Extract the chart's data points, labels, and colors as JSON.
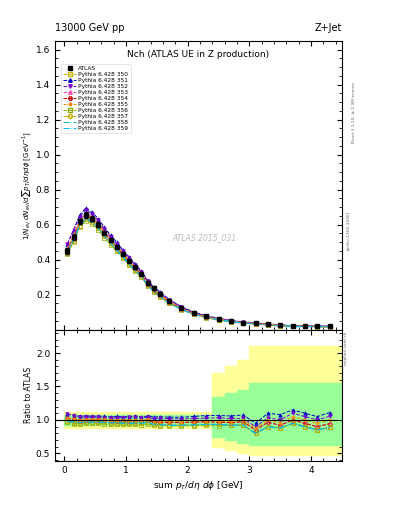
{
  "title_top": "13000 GeV pp",
  "title_right": "Z+Jet",
  "plot_title": "Nch (ATLAS UE in Z production)",
  "ylabel_main": "1/N_{ev} dN_{ev}/dsum p_{T}/d#eta d#phi  [GeV^{-1}]",
  "ylabel_ratio": "Ratio to ATLAS",
  "watermark": "ATLAS 2015_031",
  "rivet_label": "Rivet 3.1.10, ≥ 2.3M events",
  "arxiv_label": "[arXiv:1306.3436]",
  "mcplots_label": "mcplots.cern.ch",
  "xlim": [
    -0.15,
    4.5
  ],
  "ylim_main": [
    0.0,
    1.65
  ],
  "ylim_ratio": [
    0.39,
    2.35
  ],
  "x_atlas": [
    0.05,
    0.15,
    0.25,
    0.35,
    0.45,
    0.55,
    0.65,
    0.75,
    0.85,
    0.95,
    1.05,
    1.15,
    1.25,
    1.35,
    1.45,
    1.55,
    1.7,
    1.9,
    2.1,
    2.3,
    2.5,
    2.7,
    2.9,
    3.1,
    3.3,
    3.5,
    3.7,
    3.9,
    4.1,
    4.3
  ],
  "y_atlas": [
    0.45,
    0.53,
    0.62,
    0.655,
    0.635,
    0.6,
    0.555,
    0.515,
    0.475,
    0.435,
    0.395,
    0.355,
    0.32,
    0.265,
    0.235,
    0.205,
    0.165,
    0.125,
    0.095,
    0.075,
    0.06,
    0.05,
    0.04,
    0.04,
    0.03,
    0.025,
    0.02,
    0.02,
    0.02,
    0.018
  ],
  "yerr_atlas": [
    0.015,
    0.015,
    0.015,
    0.015,
    0.015,
    0.015,
    0.01,
    0.01,
    0.01,
    0.01,
    0.01,
    0.01,
    0.01,
    0.01,
    0.01,
    0.01,
    0.008,
    0.008,
    0.006,
    0.006,
    0.005,
    0.004,
    0.003,
    0.003,
    0.003,
    0.003,
    0.002,
    0.002,
    0.002,
    0.002
  ],
  "series": [
    {
      "label": "Pythia 6.428 350",
      "color": "#c8b400",
      "linestyle": "--",
      "marker": "s",
      "markerfill": "none",
      "y": [
        0.44,
        0.5,
        0.59,
        0.635,
        0.615,
        0.58,
        0.535,
        0.495,
        0.455,
        0.415,
        0.375,
        0.34,
        0.305,
        0.255,
        0.22,
        0.19,
        0.152,
        0.115,
        0.088,
        0.07,
        0.056,
        0.046,
        0.037,
        0.032,
        0.027,
        0.022,
        0.019,
        0.018,
        0.017,
        0.016
      ]
    },
    {
      "label": "Pythia 6.428 351",
      "color": "#0000cc",
      "linestyle": "--",
      "marker": "^",
      "markerfill": "full",
      "y": [
        0.49,
        0.57,
        0.655,
        0.695,
        0.67,
        0.635,
        0.585,
        0.54,
        0.5,
        0.455,
        0.415,
        0.375,
        0.335,
        0.28,
        0.245,
        0.215,
        0.172,
        0.13,
        0.1,
        0.08,
        0.064,
        0.053,
        0.043,
        0.038,
        0.033,
        0.027,
        0.023,
        0.022,
        0.021,
        0.02
      ]
    },
    {
      "label": "Pythia 6.428 352",
      "color": "#7700cc",
      "linestyle": "--",
      "marker": "v",
      "markerfill": "full",
      "y": [
        0.49,
        0.565,
        0.645,
        0.685,
        0.66,
        0.625,
        0.575,
        0.53,
        0.49,
        0.45,
        0.41,
        0.37,
        0.33,
        0.275,
        0.24,
        0.21,
        0.168,
        0.127,
        0.097,
        0.077,
        0.062,
        0.051,
        0.041,
        0.036,
        0.031,
        0.025,
        0.022,
        0.021,
        0.02,
        0.019
      ]
    },
    {
      "label": "Pythia 6.428 353",
      "color": "#ff44aa",
      "linestyle": "--",
      "marker": "^",
      "markerfill": "none",
      "y": [
        0.46,
        0.535,
        0.615,
        0.655,
        0.635,
        0.6,
        0.555,
        0.51,
        0.47,
        0.43,
        0.39,
        0.352,
        0.315,
        0.263,
        0.228,
        0.198,
        0.159,
        0.12,
        0.092,
        0.073,
        0.058,
        0.048,
        0.039,
        0.034,
        0.029,
        0.023,
        0.02,
        0.019,
        0.018,
        0.017
      ]
    },
    {
      "label": "Pythia 6.428 354",
      "color": "#cc0000",
      "linestyle": "--",
      "marker": "o",
      "markerfill": "none",
      "y": [
        0.46,
        0.535,
        0.615,
        0.655,
        0.635,
        0.6,
        0.555,
        0.51,
        0.47,
        0.43,
        0.39,
        0.352,
        0.315,
        0.263,
        0.228,
        0.198,
        0.159,
        0.12,
        0.092,
        0.073,
        0.058,
        0.048,
        0.039,
        0.034,
        0.029,
        0.023,
        0.02,
        0.019,
        0.018,
        0.017
      ]
    },
    {
      "label": "Pythia 6.428 355",
      "color": "#ff8800",
      "linestyle": "--",
      "marker": "*",
      "markerfill": "full",
      "y": [
        0.46,
        0.54,
        0.62,
        0.66,
        0.64,
        0.605,
        0.56,
        0.515,
        0.475,
        0.435,
        0.395,
        0.357,
        0.32,
        0.267,
        0.232,
        0.202,
        0.162,
        0.122,
        0.094,
        0.074,
        0.059,
        0.049,
        0.04,
        0.035,
        0.03,
        0.024,
        0.021,
        0.02,
        0.019,
        0.018
      ]
    },
    {
      "label": "Pythia 6.428 356",
      "color": "#88aa00",
      "linestyle": "--",
      "marker": "s",
      "markerfill": "none",
      "y": [
        0.435,
        0.505,
        0.585,
        0.623,
        0.605,
        0.57,
        0.525,
        0.485,
        0.447,
        0.408,
        0.37,
        0.334,
        0.298,
        0.249,
        0.216,
        0.188,
        0.15,
        0.114,
        0.087,
        0.069,
        0.055,
        0.046,
        0.037,
        0.032,
        0.027,
        0.022,
        0.019,
        0.018,
        0.017,
        0.016
      ]
    },
    {
      "label": "Pythia 6.428 357",
      "color": "#ccaa00",
      "linestyle": "-.",
      "marker": "D",
      "markerfill": "none",
      "y": [
        0.44,
        0.515,
        0.595,
        0.635,
        0.615,
        0.58,
        0.535,
        0.495,
        0.455,
        0.415,
        0.375,
        0.34,
        0.305,
        0.255,
        0.22,
        0.19,
        0.152,
        0.115,
        0.088,
        0.07,
        0.056,
        0.046,
        0.037,
        0.032,
        0.027,
        0.022,
        0.019,
        0.018,
        0.017,
        0.016
      ]
    },
    {
      "label": "Pythia 6.428 358",
      "color": "#00bbbb",
      "linestyle": "-.",
      "marker": "None",
      "markerfill": "none",
      "y": [
        0.44,
        0.515,
        0.595,
        0.635,
        0.615,
        0.58,
        0.535,
        0.495,
        0.455,
        0.415,
        0.375,
        0.34,
        0.305,
        0.255,
        0.22,
        0.19,
        0.152,
        0.115,
        0.088,
        0.07,
        0.056,
        0.046,
        0.037,
        0.032,
        0.027,
        0.022,
        0.019,
        0.018,
        0.017,
        0.016
      ]
    },
    {
      "label": "Pythia 6.428 359",
      "color": "#00bbff",
      "linestyle": "-.",
      "marker": "None",
      "markerfill": "none",
      "y": [
        0.44,
        0.515,
        0.595,
        0.635,
        0.615,
        0.58,
        0.535,
        0.495,
        0.455,
        0.415,
        0.375,
        0.34,
        0.305,
        0.255,
        0.22,
        0.19,
        0.152,
        0.115,
        0.088,
        0.07,
        0.056,
        0.046,
        0.037,
        0.032,
        0.027,
        0.022,
        0.019,
        0.018,
        0.017,
        0.016
      ]
    }
  ],
  "band_x": [
    0.0,
    0.2,
    0.4,
    0.6,
    0.8,
    1.0,
    1.2,
    1.4,
    1.6,
    1.8,
    2.0,
    2.2,
    2.4,
    2.6,
    2.8,
    3.0,
    3.2,
    3.6,
    4.0,
    4.5
  ],
  "band_yl_lo": [
    0.88,
    0.88,
    0.88,
    0.88,
    0.88,
    0.88,
    0.88,
    0.88,
    0.88,
    0.88,
    0.88,
    0.88,
    0.6,
    0.55,
    0.5,
    0.48,
    0.48,
    0.48,
    0.48,
    0.48
  ],
  "band_yl_hi": [
    1.12,
    1.12,
    1.12,
    1.12,
    1.12,
    1.12,
    1.12,
    1.12,
    1.12,
    1.12,
    1.12,
    1.12,
    1.7,
    1.8,
    1.9,
    2.1,
    2.1,
    2.1,
    2.1,
    2.1
  ],
  "band_gl_lo": [
    0.93,
    0.93,
    0.93,
    0.93,
    0.93,
    0.93,
    0.93,
    0.93,
    0.93,
    0.93,
    0.93,
    0.93,
    0.75,
    0.7,
    0.65,
    0.62,
    0.62,
    0.62,
    0.62,
    0.62
  ],
  "band_gl_hi": [
    1.07,
    1.07,
    1.07,
    1.07,
    1.07,
    1.07,
    1.07,
    1.07,
    1.07,
    1.07,
    1.07,
    1.07,
    1.35,
    1.4,
    1.45,
    1.55,
    1.55,
    1.55,
    1.55,
    1.55
  ]
}
